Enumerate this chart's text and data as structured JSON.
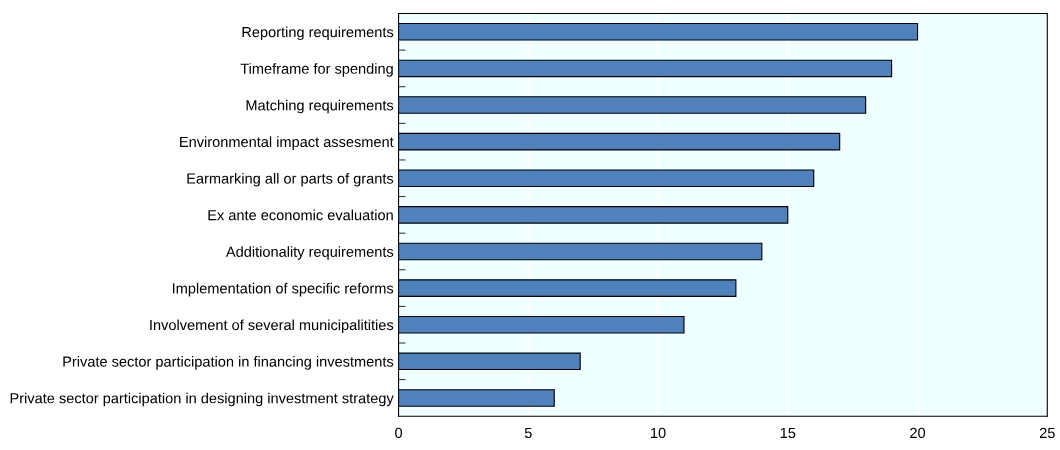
{
  "chart_data": {
    "type": "bar",
    "orientation": "horizontal",
    "categories": [
      "Reporting requirements",
      "Timeframe for spending",
      "Matching requirements",
      "Environmental impact assesment",
      "Earmarking all or parts of grants",
      "Ex ante economic evaluation",
      "Additionality requirements",
      "Implementation of specific reforms",
      "Involvement of several municipalitities",
      "Private sector participation in financing investments",
      "Private sector participation in designing investment strategy"
    ],
    "values": [
      20,
      19,
      18,
      17,
      16,
      15,
      14,
      13,
      11,
      7,
      6
    ],
    "color": "#4f81bd",
    "xlim": [
      0,
      25
    ],
    "xticks": [
      0,
      5,
      10,
      15,
      20,
      25
    ],
    "grid": "x"
  }
}
